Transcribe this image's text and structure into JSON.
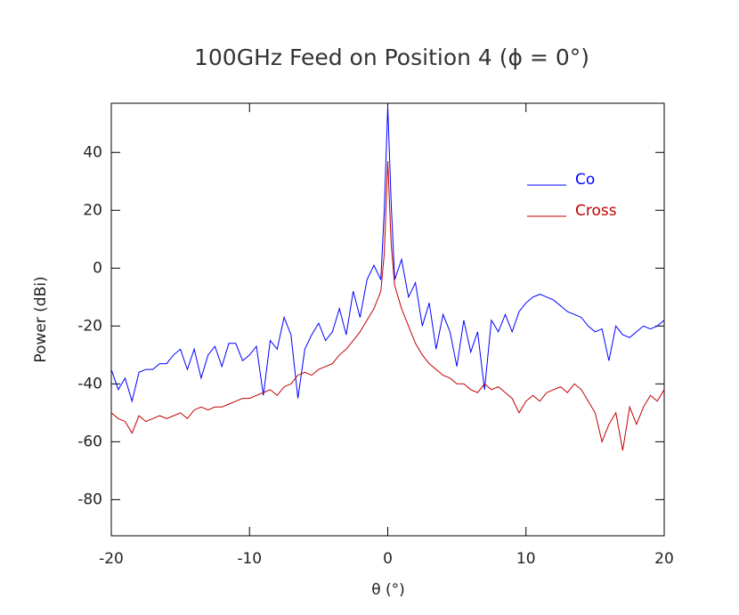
{
  "chart_data": {
    "type": "line",
    "title": "100GHz Feed on Position 4 (ϕ = 0°)",
    "x_label": "θ (°)",
    "y_label": "Power (dBi)",
    "x": [
      -20,
      -19.5,
      -19,
      -18.5,
      -18,
      -17.5,
      -17,
      -16.5,
      -16,
      -15.5,
      -15,
      -14.5,
      -14,
      -13.5,
      -13,
      -12.5,
      -12,
      -11.5,
      -11,
      -10.5,
      -10,
      -9.5,
      -9,
      -8.5,
      -8,
      -7.5,
      -7,
      -6.5,
      -6,
      -5.5,
      -5,
      -4.5,
      -4,
      -3.5,
      -3,
      -2.5,
      -2,
      -1.5,
      -1,
      -0.5,
      -0.25,
      0,
      0.25,
      0.5,
      1,
      1.5,
      2,
      2.5,
      3,
      3.5,
      4,
      4.5,
      5,
      5.5,
      6,
      6.5,
      7,
      7.5,
      8,
      8.5,
      9,
      9.5,
      10,
      10.5,
      11,
      11.5,
      12,
      12.5,
      13,
      13.5,
      14,
      14.5,
      15,
      15.5,
      16,
      16.5,
      17,
      17.5,
      18,
      18.5,
      19,
      19.5,
      20
    ],
    "series": [
      {
        "name": "Co",
        "color": "#0000ff",
        "values": [
          -35,
          -42,
          -38,
          -46,
          -36,
          -35,
          -35,
          -33,
          -33,
          -30,
          -28,
          -35,
          -28,
          -38,
          -30,
          -27,
          -34,
          -26,
          -26,
          -32,
          -30,
          -27,
          -44,
          -25,
          -28,
          -17,
          -23,
          -45,
          -28,
          -23,
          -19,
          -25,
          -22,
          -14,
          -23,
          -8,
          -17,
          -4,
          1,
          -4,
          20,
          56,
          22,
          -4,
          3,
          -10,
          -5,
          -20,
          -12,
          -28,
          -16,
          -22,
          -34,
          -18,
          -29,
          -22,
          -42,
          -18,
          -22,
          -16,
          -22,
          -15,
          -12,
          -10,
          -9,
          -10,
          -11,
          -13,
          -15,
          -16,
          -17,
          -20,
          -22,
          -21,
          -32,
          -20,
          -23,
          -24,
          -22,
          -20,
          -21,
          -20,
          -18
        ]
      },
      {
        "name": "Cross",
        "color": "#c00000",
        "values": [
          -50,
          -52,
          -53,
          -57,
          -51,
          -53,
          -52,
          -51,
          -52,
          -51,
          -50,
          -52,
          -49,
          -48,
          -49,
          -48,
          -48,
          -47,
          -46,
          -45,
          -45,
          -44,
          -43,
          -42,
          -44,
          -41,
          -40,
          -37,
          -36,
          -37,
          -35,
          -34,
          -33,
          -30,
          -28,
          -25,
          -22,
          -18,
          -14,
          -8,
          5,
          37,
          8,
          -6,
          -14,
          -20,
          -26,
          -30,
          -33,
          -35,
          -37,
          -38,
          -40,
          -40,
          -42,
          -43,
          -40,
          -42,
          -41,
          -43,
          -45,
          -50,
          -46,
          -44,
          -46,
          -43,
          -42,
          -41,
          -43,
          -40,
          -42,
          -46,
          -50,
          -60,
          -54,
          -50,
          -63,
          -48,
          -54,
          -48,
          -44,
          -46,
          -42
        ]
      }
    ],
    "xlim": [
      -20,
      20
    ],
    "xticks": [
      -20,
      -10,
      0,
      10,
      20
    ],
    "ylim": [
      -92.5,
      57
    ],
    "yticks": [
      -80,
      -60,
      -40,
      -20,
      0,
      20,
      40
    ],
    "legend": "upper right"
  }
}
